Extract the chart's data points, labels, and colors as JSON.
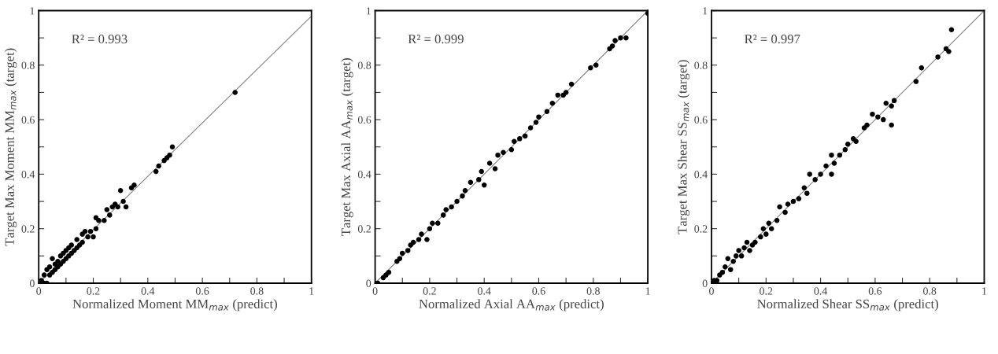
{
  "chart_data": [
    {
      "type": "scatter",
      "xlabel": "Normalized Moment MM$_{max}$ (predict)",
      "ylabel": "Target Max Moment MM$_{max}$ (target)",
      "annotations": [
        "R² = 0.993"
      ],
      "xlim": [
        0,
        1
      ],
      "ylim": [
        0,
        1
      ],
      "grid": false,
      "xticks": [
        0,
        {
          "value": 0.1,
          "label": null
        },
        0.2,
        {
          "value": 0.3,
          "label": null
        },
        0.4,
        {
          "value": 0.5,
          "label": null
        },
        0.6,
        {
          "value": 0.7,
          "label": null
        },
        0.8,
        {
          "value": 0.9,
          "label": null
        },
        1
      ],
      "yticks": [
        0,
        {
          "value": 0.1,
          "label": null
        },
        0.2,
        {
          "value": 0.3,
          "label": null
        },
        0.4,
        {
          "value": 0.5,
          "label": null
        },
        0.6,
        {
          "value": 0.7,
          "label": null
        },
        0.8,
        {
          "value": 0.9,
          "label": null
        },
        1
      ],
      "series": [
        {
          "type": "line",
          "marker": "none",
          "color": "#808080",
          "x": [
            0,
            1
          ],
          "values": [
            0,
            0.98
          ]
        },
        {
          "marker": "circle",
          "color": "#000000",
          "x": [
            0.01,
            0.02,
            0.03,
            0.02,
            0.03,
            0.04,
            0.04,
            0.05,
            0.05,
            0.06,
            0.06,
            0.07,
            0.07,
            0.08,
            0.08,
            0.09,
            0.09,
            0.1,
            0.1,
            0.11,
            0.11,
            0.12,
            0.12,
            0.13,
            0.14,
            0.14,
            0.15,
            0.16,
            0.16,
            0.17,
            0.18,
            0.19,
            0.2,
            0.21,
            0.21,
            0.22,
            0.24,
            0.25,
            0.26,
            0.27,
            0.28,
            0.29,
            0.3,
            0.31,
            0.32,
            0.34,
            0.35,
            0.43,
            0.44,
            0.46,
            0.47,
            0.48,
            0.49,
            0.72
          ],
          "values": [
            0.01,
            0.0,
            0.0,
            0.03,
            0.05,
            0.03,
            0.06,
            0.04,
            0.09,
            0.05,
            0.07,
            0.06,
            0.08,
            0.07,
            0.1,
            0.08,
            0.11,
            0.09,
            0.12,
            0.1,
            0.13,
            0.11,
            0.14,
            0.12,
            0.13,
            0.16,
            0.14,
            0.18,
            0.15,
            0.19,
            0.17,
            0.19,
            0.17,
            0.2,
            0.24,
            0.23,
            0.23,
            0.27,
            0.25,
            0.28,
            0.29,
            0.28,
            0.34,
            0.3,
            0.28,
            0.35,
            0.36,
            0.41,
            0.43,
            0.45,
            0.46,
            0.47,
            0.5,
            0.7
          ]
        }
      ]
    },
    {
      "type": "scatter",
      "xlabel": "Normalized Axial AA$_{max}$ (predict)",
      "ylabel": "Target Max Axial AA$_{max}$ (target)",
      "annotations": [
        "R² = 0.999"
      ],
      "xlim": [
        0,
        1
      ],
      "ylim": [
        0,
        1
      ],
      "grid": false,
      "xticks": [
        0,
        {
          "value": 0.1,
          "label": null
        },
        0.2,
        {
          "value": 0.3,
          "label": null
        },
        0.4,
        {
          "value": 0.5,
          "label": null
        },
        0.6,
        {
          "value": 0.7,
          "label": null
        },
        0.8,
        {
          "value": 0.9,
          "label": null
        },
        1
      ],
      "yticks": [
        0,
        {
          "value": 0.1,
          "label": null
        },
        0.2,
        {
          "value": 0.3,
          "label": null
        },
        0.4,
        {
          "value": 0.5,
          "label": null
        },
        0.6,
        {
          "value": 0.7,
          "label": null
        },
        0.8,
        {
          "value": 0.9,
          "label": null
        },
        1
      ],
      "series": [
        {
          "type": "line",
          "marker": "none",
          "color": "#808080",
          "x": [
            0,
            1
          ],
          "values": [
            0,
            1
          ]
        },
        {
          "marker": "circle",
          "color": "#000000",
          "x": [
            0.0,
            0.01,
            0.03,
            0.04,
            0.05,
            0.08,
            0.09,
            0.1,
            0.12,
            0.13,
            0.14,
            0.16,
            0.17,
            0.19,
            0.2,
            0.21,
            0.23,
            0.25,
            0.26,
            0.28,
            0.3,
            0.32,
            0.33,
            0.35,
            0.38,
            0.39,
            0.4,
            0.42,
            0.44,
            0.45,
            0.47,
            0.5,
            0.51,
            0.53,
            0.55,
            0.57,
            0.59,
            0.6,
            0.63,
            0.65,
            0.67,
            0.69,
            0.7,
            0.72,
            0.79,
            0.81,
            0.86,
            0.87,
            0.88,
            0.9,
            0.92,
            1.0
          ],
          "values": [
            0.0,
            0.0,
            0.02,
            0.03,
            0.04,
            0.08,
            0.09,
            0.11,
            0.12,
            0.14,
            0.15,
            0.16,
            0.18,
            0.16,
            0.2,
            0.22,
            0.22,
            0.25,
            0.27,
            0.28,
            0.3,
            0.32,
            0.34,
            0.37,
            0.38,
            0.41,
            0.36,
            0.44,
            0.42,
            0.47,
            0.48,
            0.49,
            0.52,
            0.53,
            0.54,
            0.57,
            0.59,
            0.61,
            0.63,
            0.66,
            0.69,
            0.69,
            0.7,
            0.73,
            0.79,
            0.8,
            0.86,
            0.87,
            0.89,
            0.9,
            0.9,
            0.99
          ]
        }
      ]
    },
    {
      "type": "scatter",
      "xlabel": "Normalized Shear SS$_{max}$ (predict)",
      "ylabel": "Target Max Shear SS$_{max}$ (target)",
      "annotations": [
        "R² = 0.997"
      ],
      "xlim": [
        0,
        1
      ],
      "ylim": [
        0,
        1
      ],
      "grid": false,
      "xticks": [
        0,
        {
          "value": 0.1,
          "label": null
        },
        0.2,
        {
          "value": 0.3,
          "label": null
        },
        0.4,
        {
          "value": 0.5,
          "label": null
        },
        0.6,
        {
          "value": 0.7,
          "label": null
        },
        0.8,
        {
          "value": 0.9,
          "label": null
        },
        1
      ],
      "yticks": [
        0,
        {
          "value": 0.1,
          "label": null
        },
        0.2,
        {
          "value": 0.3,
          "label": null
        },
        0.4,
        {
          "value": 0.5,
          "label": null
        },
        0.6,
        {
          "value": 0.7,
          "label": null
        },
        0.8,
        {
          "value": 0.9,
          "label": null
        },
        1
      ],
      "series": [
        {
          "type": "line",
          "marker": "none",
          "color": "#808080",
          "x": [
            0,
            1
          ],
          "values": [
            0,
            1
          ]
        },
        {
          "marker": "circle",
          "color": "#000000",
          "x": [
            0.0,
            0.01,
            0.02,
            0.03,
            0.04,
            0.05,
            0.06,
            0.07,
            0.08,
            0.09,
            0.1,
            0.11,
            0.12,
            0.13,
            0.14,
            0.15,
            0.16,
            0.18,
            0.19,
            0.2,
            0.21,
            0.22,
            0.24,
            0.25,
            0.27,
            0.28,
            0.3,
            0.32,
            0.34,
            0.35,
            0.36,
            0.38,
            0.4,
            0.42,
            0.44,
            0.44,
            0.45,
            0.47,
            0.49,
            0.5,
            0.52,
            0.53,
            0.56,
            0.57,
            0.59,
            0.61,
            0.63,
            0.64,
            0.66,
            0.66,
            0.67,
            0.75,
            0.77,
            0.83,
            0.86,
            0.87,
            0.88
          ],
          "values": [
            0.0,
            0.01,
            0.01,
            0.03,
            0.04,
            0.06,
            0.09,
            0.05,
            0.08,
            0.1,
            0.12,
            0.1,
            0.13,
            0.15,
            0.12,
            0.14,
            0.15,
            0.17,
            0.2,
            0.18,
            0.22,
            0.2,
            0.23,
            0.28,
            0.26,
            0.29,
            0.3,
            0.31,
            0.35,
            0.33,
            0.4,
            0.38,
            0.4,
            0.43,
            0.4,
            0.47,
            0.44,
            0.47,
            0.49,
            0.51,
            0.53,
            0.52,
            0.57,
            0.58,
            0.62,
            0.61,
            0.6,
            0.66,
            0.58,
            0.65,
            0.67,
            0.74,
            0.79,
            0.83,
            0.86,
            0.85,
            0.93
          ]
        }
      ]
    }
  ]
}
